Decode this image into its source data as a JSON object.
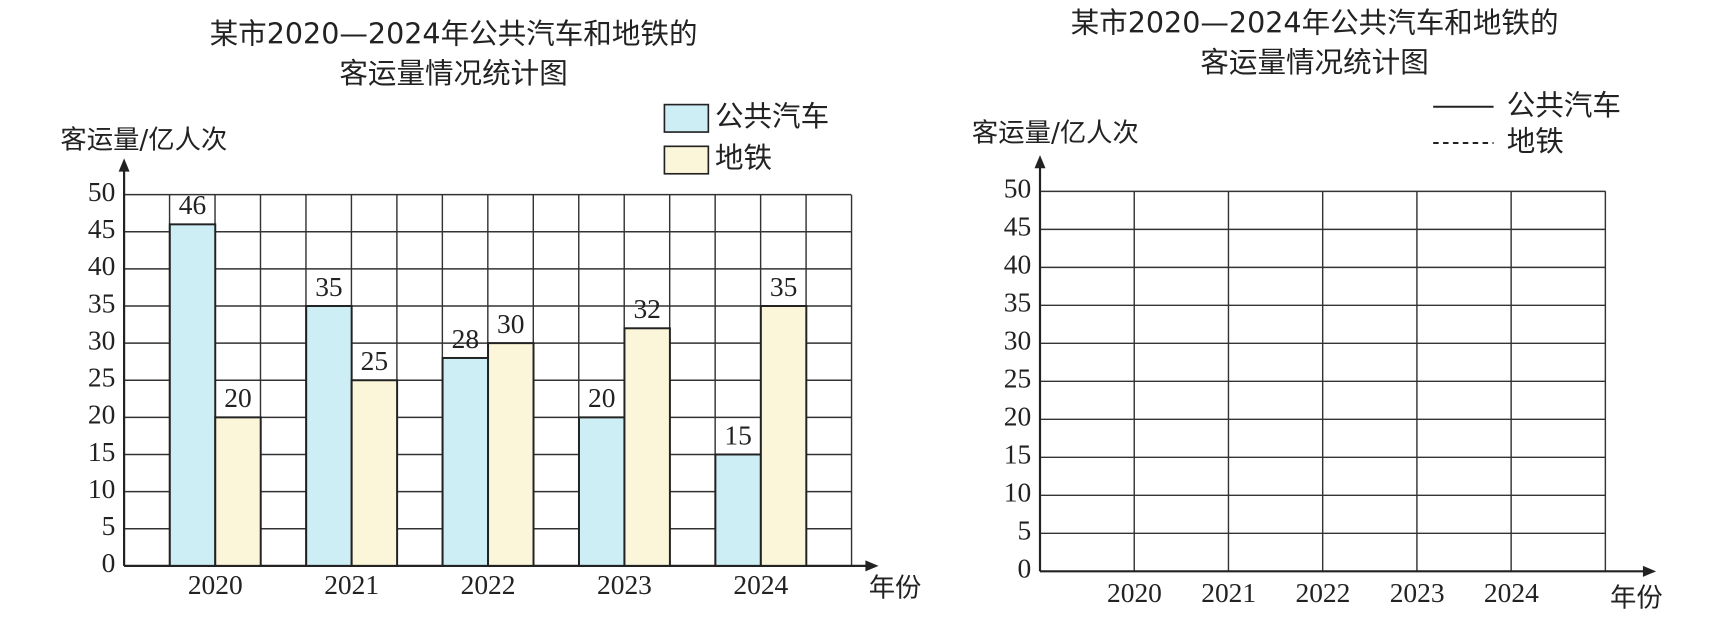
{
  "chart_data": [
    {
      "type": "bar",
      "title": [
        "某市2020—2024年公共汽车和地铁的",
        "客运量情况统计图"
      ],
      "y_label": "客运量/亿人次",
      "x_label": "年份",
      "categories": [
        "2020",
        "2021",
        "2022",
        "2023",
        "2024"
      ],
      "series": [
        {
          "name": "公共汽车",
          "color": "#cdeef5",
          "values": [
            46,
            35,
            28,
            20,
            15
          ]
        },
        {
          "name": "地铁",
          "color": "#fbf5da",
          "values": [
            20,
            25,
            30,
            32,
            35
          ]
        }
      ],
      "ylim": [
        0,
        50
      ],
      "yticks": [
        0,
        5,
        10,
        15,
        20,
        25,
        30,
        35,
        40,
        45,
        50
      ],
      "grid": true,
      "legend": "top right"
    },
    {
      "type": "line",
      "title": [
        "某市2020—2024年公共汽车和地铁的",
        "客运量情况统计图"
      ],
      "y_label": "客运量/亿人次",
      "x_label": "年份",
      "categories": [
        "2020",
        "2021",
        "2022",
        "2023",
        "2024"
      ],
      "series": [
        {
          "name": "公共汽车",
          "color": "#222222",
          "dash": "solid",
          "values": [
            null,
            null,
            null,
            null,
            null
          ]
        },
        {
          "name": "地铁",
          "color": "#222222",
          "dash": "dashed",
          "values": [
            null,
            null,
            null,
            null,
            null
          ]
        }
      ],
      "ylim": [
        0,
        50
      ],
      "yticks": [
        0,
        5,
        10,
        15,
        20,
        25,
        30,
        35,
        40,
        45,
        50
      ],
      "grid": true,
      "legend": "top right"
    }
  ]
}
